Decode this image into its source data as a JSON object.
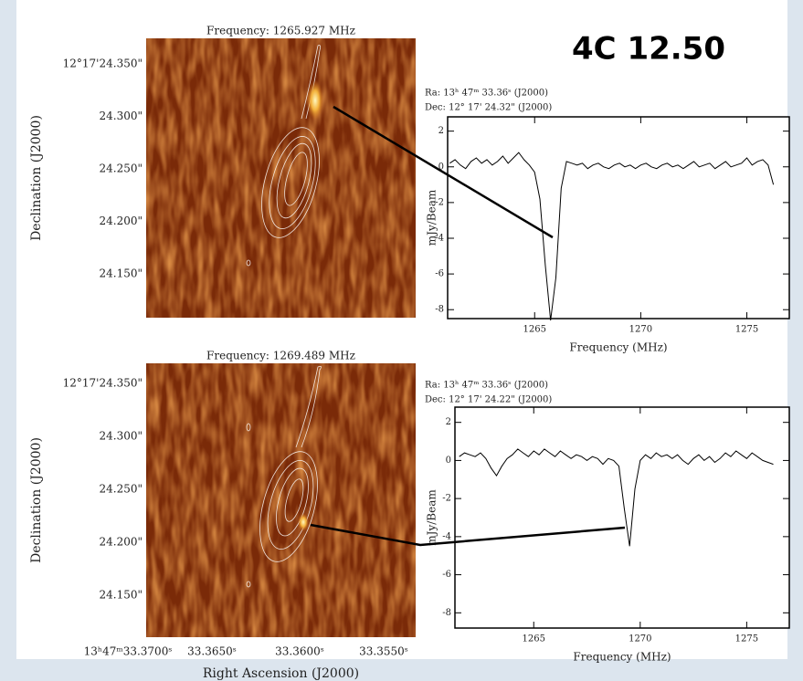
{
  "title": "4C 12.50",
  "images": [
    {
      "frequency_title": "Frequency: 1265.927 MHz",
      "ylabel": "Declination (J2000)",
      "ytick_labels": [
        "12°17'24.350\"",
        "24.300\"",
        "24.250\"",
        "24.200\"",
        "24.150\""
      ]
    },
    {
      "frequency_title": "Frequency: 1269.489 MHz",
      "ylabel": "Declination (J2000)",
      "ytick_labels": [
        "12°17'24.350\"",
        "24.300\"",
        "24.250\"",
        "24.200\"",
        "24.150\""
      ],
      "xtick_labels": [
        "13ʰ47ᵐ33.3700ˢ",
        "33.3650ˢ",
        "33.3600ˢ",
        "33.3550ˢ"
      ],
      "xlabel": "Right Ascension (J2000)"
    }
  ],
  "chart_data": [
    {
      "type": "line",
      "annotations": [
        "Ra: 13ʰ 47ᵐ 33.36ˢ (J2000)",
        "Dec: 12° 17' 24.32\" (J2000)"
      ],
      "xlabel": "Frequency (MHz)",
      "ylabel": "mJy/Beam",
      "color": "#000000",
      "xlim": [
        1260.9,
        1277
      ],
      "xticks": [
        1265,
        1270,
        1275
      ],
      "ylim": [
        -8.5,
        2.8
      ],
      "yticks": [
        -8,
        -6,
        -4,
        -2,
        0,
        2
      ],
      "x": [
        1261,
        1261.25,
        1261.5,
        1261.75,
        1262,
        1262.25,
        1262.5,
        1262.75,
        1263,
        1263.25,
        1263.5,
        1263.75,
        1264,
        1264.25,
        1264.5,
        1264.75,
        1265,
        1265.25,
        1265.5,
        1265.75,
        1266,
        1266.25,
        1266.5,
        1266.75,
        1267,
        1267.25,
        1267.5,
        1267.75,
        1268,
        1268.25,
        1268.5,
        1268.75,
        1269,
        1269.25,
        1269.5,
        1269.75,
        1270,
        1270.25,
        1270.5,
        1270.75,
        1271,
        1271.25,
        1271.5,
        1271.75,
        1272,
        1272.25,
        1272.5,
        1272.75,
        1273,
        1273.25,
        1273.5,
        1273.75,
        1274,
        1274.25,
        1274.5,
        1274.75,
        1275,
        1275.25,
        1275.5,
        1275.75,
        1276,
        1276.25
      ],
      "values": [
        0.2,
        0.4,
        0.1,
        -0.1,
        0.3,
        0.5,
        0.2,
        0.4,
        0.1,
        0.3,
        0.6,
        0.2,
        0.5,
        0.8,
        0.4,
        0.1,
        -0.3,
        -1.8,
        -5.5,
        -8.6,
        -6.2,
        -1.2,
        0.3,
        0.2,
        0.1,
        0.2,
        -0.1,
        0.1,
        0.2,
        0,
        -0.1,
        0.1,
        0.2,
        0,
        0.1,
        -0.1,
        0.1,
        0.2,
        0,
        -0.1,
        0.1,
        0.2,
        0,
        0.1,
        -0.1,
        0.1,
        0.3,
        0,
        0.1,
        0.2,
        -0.1,
        0.1,
        0.3,
        0,
        0.1,
        0.2,
        0.5,
        0.1,
        0.3,
        0.4,
        0.1,
        -1.0
      ]
    },
    {
      "type": "line",
      "annotations": [
        "Ra: 13ʰ 47ᵐ 33.36ˢ (J2000)",
        "Dec: 12° 17' 24.22\" (J2000)"
      ],
      "xlabel": "Frequency (MHz)",
      "ylabel": "mJy/Beam",
      "color": "#000000",
      "xlim": [
        1261.3,
        1277
      ],
      "xticks": [
        1265,
        1270,
        1275
      ],
      "ylim": [
        -8.8,
        2.8
      ],
      "yticks": [
        -8,
        -6,
        -4,
        -2,
        0,
        2
      ],
      "x": [
        1261.5,
        1261.75,
        1262,
        1262.25,
        1262.5,
        1262.75,
        1263,
        1263.25,
        1263.5,
        1263.75,
        1264,
        1264.25,
        1264.5,
        1264.75,
        1265,
        1265.25,
        1265.5,
        1265.75,
        1266,
        1266.25,
        1266.5,
        1266.75,
        1267,
        1267.25,
        1267.5,
        1267.75,
        1268,
        1268.25,
        1268.5,
        1268.75,
        1269,
        1269.25,
        1269.5,
        1269.75,
        1270,
        1270.25,
        1270.5,
        1270.75,
        1271,
        1271.25,
        1271.5,
        1271.75,
        1272,
        1272.25,
        1272.5,
        1272.75,
        1273,
        1273.25,
        1273.5,
        1273.75,
        1274,
        1274.25,
        1274.5,
        1274.75,
        1275,
        1275.25,
        1275.5,
        1275.75,
        1276,
        1276.25
      ],
      "values": [
        0.2,
        0.4,
        0.3,
        0.2,
        0.4,
        0.1,
        -0.4,
        -0.8,
        -0.3,
        0.1,
        0.3,
        0.6,
        0.4,
        0.2,
        0.5,
        0.3,
        0.6,
        0.4,
        0.2,
        0.5,
        0.3,
        0.1,
        0.3,
        0.2,
        0,
        0.2,
        0.1,
        -0.2,
        0.1,
        0,
        -0.3,
        -2.5,
        -4.5,
        -1.5,
        0,
        0.3,
        0.1,
        0.4,
        0.2,
        0.3,
        0.1,
        0.3,
        0,
        -0.2,
        0.1,
        0.3,
        0,
        0.2,
        -0.1,
        0.1,
        0.4,
        0.2,
        0.5,
        0.3,
        0.1,
        0.4,
        0.2,
        0,
        -0.1,
        -0.2
      ]
    }
  ]
}
